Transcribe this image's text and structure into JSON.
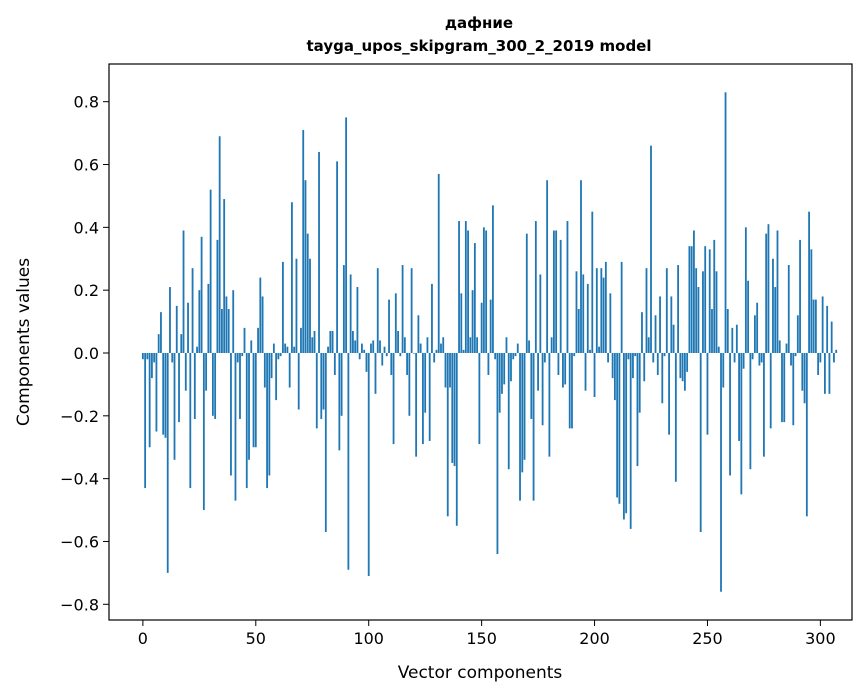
{
  "chart_data": {
    "type": "bar",
    "title_line1": "дафние",
    "title_line2": "tayga_upos_skipgram_300_2_2019 model",
    "xlabel": "Vector components",
    "ylabel": "Components values",
    "xlim": [
      -15,
      314
    ],
    "ylim": [
      -0.85,
      0.92
    ],
    "xticks": [
      0,
      50,
      100,
      150,
      200,
      250,
      300
    ],
    "yticks": [
      -0.8,
      -0.6,
      -0.4,
      -0.2,
      0.0,
      0.2,
      0.4,
      0.6,
      0.8
    ],
    "ytick_labels": [
      "−0.8",
      "−0.6",
      "−0.4",
      "−0.2",
      "0.0",
      "0.2",
      "0.4",
      "0.6",
      "0.8"
    ],
    "grid": false,
    "bar_color": "#1f77b4",
    "x_start": 0,
    "values": [
      -0.02,
      -0.43,
      -0.02,
      -0.3,
      -0.08,
      -0.03,
      -0.25,
      0.06,
      0.13,
      -0.26,
      -0.27,
      -0.7,
      0.21,
      -0.03,
      -0.34,
      0.15,
      -0.22,
      0.06,
      0.39,
      -0.12,
      0.16,
      -0.43,
      0.27,
      -0.21,
      0.02,
      0.2,
      0.37,
      -0.5,
      -0.12,
      0.22,
      0.52,
      -0.2,
      -0.21,
      0.36,
      0.69,
      0.14,
      0.49,
      0.18,
      0.14,
      -0.39,
      0.2,
      -0.47,
      -0.03,
      -0.21,
      -0.01,
      0.08,
      -0.43,
      -0.34,
      0.04,
      -0.3,
      -0.3,
      0.08,
      0.24,
      0.18,
      -0.11,
      -0.43,
      -0.39,
      -0.08,
      0.03,
      -0.15,
      -0.02,
      -0.01,
      0.29,
      0.03,
      0.02,
      -0.11,
      0.48,
      0.02,
      0.3,
      -0.18,
      0.08,
      0.71,
      0.55,
      0.38,
      0.3,
      0.05,
      0.07,
      -0.24,
      0.64,
      -0.21,
      -0.18,
      -0.57,
      0.02,
      0.07,
      0.07,
      -0.07,
      0.61,
      -0.31,
      -0.2,
      0.28,
      0.75,
      -0.69,
      0.25,
      0.07,
      0.04,
      0.21,
      -0.02,
      0.03,
      0.01,
      -0.06,
      -0.71,
      0.03,
      0.04,
      -0.13,
      0.27,
      0.04,
      -0.04,
      0.02,
      -0.01,
      0.17,
      -0.07,
      -0.29,
      0.19,
      0.07,
      -0.01,
      0.28,
      0.05,
      -0.07,
      -0.2,
      0.27,
      0.0,
      -0.33,
      0.12,
      0.03,
      -0.29,
      -0.19,
      0.05,
      -0.28,
      0.22,
      -0.03,
      0.01,
      0.57,
      0.03,
      0.05,
      -0.11,
      -0.52,
      -0.11,
      -0.35,
      -0.36,
      -0.55,
      0.42,
      0.19,
      0.01,
      0.42,
      0.39,
      0.05,
      0.2,
      0.35,
      0.05,
      -0.29,
      0.16,
      0.4,
      0.39,
      -0.07,
      0.17,
      0.47,
      -0.02,
      -0.64,
      -0.19,
      -0.13,
      -0.1,
      0.05,
      -0.37,
      -0.09,
      -0.02,
      -0.01,
      0.03,
      -0.47,
      -0.38,
      -0.34,
      0.38,
      0.04,
      -0.21,
      -0.47,
      0.42,
      -0.12,
      0.25,
      -0.23,
      -0.03,
      0.55,
      -0.33,
      0.05,
      0.39,
      0.39,
      -0.07,
      0.36,
      -0.11,
      -0.1,
      0.42,
      -0.24,
      -0.24,
      -0.01,
      0.26,
      0.14,
      0.55,
      0.25,
      -0.12,
      0.22,
      0.01,
      0.45,
      -0.14,
      0.27,
      0.02,
      0.27,
      0.24,
      0.29,
      -0.03,
      0.19,
      -0.08,
      -0.15,
      -0.46,
      -0.48,
      0.29,
      -0.53,
      -0.51,
      -0.02,
      -0.56,
      -0.08,
      -0.01,
      -0.36,
      -0.19,
      0.13,
      -0.09,
      0.27,
      0.05,
      0.66,
      -0.03,
      0.12,
      -0.07,
      0.18,
      -0.16,
      -0.01,
      0.27,
      -0.26,
      0.18,
      0.09,
      -0.41,
      0.28,
      -0.08,
      -0.09,
      -0.12,
      -0.06,
      0.34,
      0.34,
      0.39,
      0.27,
      0.21,
      -0.57,
      0.26,
      0.34,
      -0.26,
      0.33,
      0.14,
      0.36,
      0.26,
      0.02,
      -0.76,
      -0.11,
      0.83,
      0.14,
      -0.39,
      0.08,
      -0.03,
      0.09,
      -0.28,
      -0.45,
      -0.05,
      0.4,
      0.23,
      -0.37,
      -0.02,
      0.12,
      0.16,
      -0.04,
      -0.03,
      -0.33,
      0.38,
      0.41,
      -0.24,
      0.3,
      0.21,
      0.39,
      0.04,
      -0.22,
      -0.22,
      0.03,
      0.28,
      -0.04,
      -0.23,
      -0.01,
      0.12,
      0.36,
      -0.12,
      -0.16,
      -0.52,
      0.45,
      0.33,
      0.17,
      0.17,
      -0.07,
      -0.03,
      0.18,
      -0.13,
      0.15,
      -0.13,
      0.1,
      -0.03,
      0.01
    ]
  }
}
